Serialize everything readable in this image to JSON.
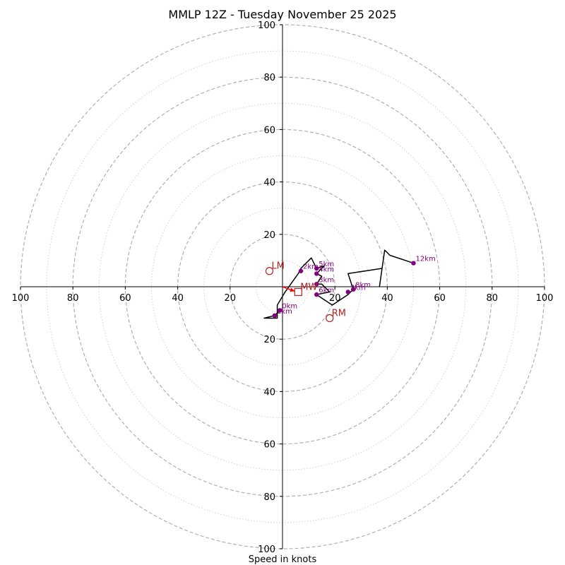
{
  "chart_data": {
    "type": "hodograph",
    "title": "MMLP 12Z - Tuesday November 25 2025",
    "xlabel": "Speed in knots",
    "ring_max": 100,
    "ring_major_step": 20,
    "ring_minor_step": 10,
    "axis_ticks": [
      "100",
      "80",
      "60",
      "40",
      "20",
      "20",
      "40",
      "60",
      "80",
      "100"
    ],
    "hodograph": [
      {
        "u": -1,
        "v": -9
      },
      {
        "u": -3,
        "v": -11
      },
      {
        "u": -7,
        "v": -12
      },
      {
        "u": -2,
        "v": -12
      },
      {
        "u": -2,
        "v": -7
      },
      {
        "u": 1,
        "v": -2
      },
      {
        "u": 6,
        "v": 5
      },
      {
        "u": 7,
        "v": 7
      },
      {
        "u": 11,
        "v": 11
      },
      {
        "u": 13,
        "v": 7
      },
      {
        "u": 16,
        "v": 8
      },
      {
        "u": 13,
        "v": 5
      },
      {
        "u": 15,
        "v": 4
      },
      {
        "u": 13,
        "v": 1
      },
      {
        "u": 15,
        "v": 1
      },
      {
        "u": 18,
        "v": -2
      },
      {
        "u": 13,
        "v": -3
      },
      {
        "u": 19,
        "v": -7
      },
      {
        "u": 25,
        "v": -3
      },
      {
        "u": 27,
        "v": -1
      },
      {
        "u": 26,
        "v": 2
      },
      {
        "u": 25,
        "v": 5
      },
      {
        "u": 38,
        "v": 7
      },
      {
        "u": 37,
        "v": 0
      },
      {
        "u": 38,
        "v": 7
      },
      {
        "u": 39,
        "v": 14
      },
      {
        "u": 41,
        "v": 12
      },
      {
        "u": 50,
        "v": 9
      }
    ],
    "height_points": [
      {
        "label": "0km",
        "u": -1,
        "v": -9
      },
      {
        "label": "1km",
        "u": -3,
        "v": -11
      },
      {
        "label": "2km",
        "u": 7,
        "v": 6
      },
      {
        "label": "3km",
        "u": 13,
        "v": 1
      },
      {
        "label": "4km",
        "u": 13,
        "v": 5
      },
      {
        "label": "5km",
        "u": 13,
        "v": 7
      },
      {
        "label": "6km",
        "u": 13,
        "v": -3
      },
      {
        "label": "7km",
        "u": 25,
        "v": -2
      },
      {
        "label": "8km",
        "u": 27,
        "v": -1
      },
      {
        "label": "12km",
        "u": 50,
        "v": 9
      }
    ],
    "storm_motion": [
      {
        "label": "LM",
        "u": -5,
        "v": 6,
        "marker": "circle"
      },
      {
        "label": "MW",
        "u": 6,
        "v": -2,
        "marker": "square"
      },
      {
        "label": "RM",
        "u": 18,
        "v": -12,
        "marker": "circle"
      }
    ],
    "colors": {
      "ring": "#b0b0b0",
      "hodo_line": "#000000",
      "height_marker": "#800080",
      "storm": "#b22222",
      "arrow": "#ff0000"
    }
  }
}
